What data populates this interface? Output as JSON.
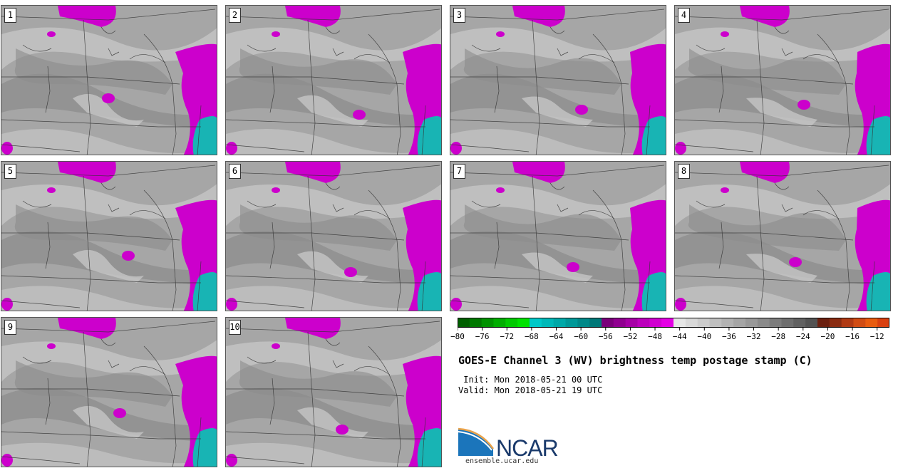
{
  "panels": [
    {
      "label": "1"
    },
    {
      "label": "2"
    },
    {
      "label": "3"
    },
    {
      "label": "4"
    },
    {
      "label": "5"
    },
    {
      "label": "6"
    },
    {
      "label": "7"
    },
    {
      "label": "8"
    },
    {
      "label": "9"
    },
    {
      "label": "10"
    }
  ],
  "colorbar": {
    "ticks": [
      "−80",
      "−76",
      "−72",
      "−68",
      "−64",
      "−60",
      "−56",
      "−52",
      "−48",
      "−44",
      "−40",
      "−36",
      "−32",
      "−28",
      "−24",
      "−20",
      "−16",
      "−12"
    ],
    "min": -80,
    "max": -10,
    "colors": [
      "#005f00",
      "#007800",
      "#009200",
      "#00ad00",
      "#00c900",
      "#00e100",
      "#00c8c8",
      "#00b8b8",
      "#00a8a8",
      "#009898",
      "#008888",
      "#007878",
      "#7a007a",
      "#900090",
      "#a600a6",
      "#bc00bc",
      "#d000d0",
      "#e400e4",
      "#e6e6e6",
      "#d9d9d9",
      "#cccccc",
      "#bfbfbf",
      "#b2b2b2",
      "#a5a5a5",
      "#989898",
      "#8a8a8a",
      "#7c7c7c",
      "#6e6e6e",
      "#606060",
      "#525252",
      "#6b2010",
      "#8a2c12",
      "#b03a14",
      "#d04c14",
      "#e85c10",
      "#d84010"
    ]
  },
  "map_colors": {
    "base": "#a6a6a6",
    "light": "#c6c6c6",
    "dark": "#8c8c8c",
    "moist": "#cc00cc",
    "cold": "#18b4b4",
    "border": "#333333"
  },
  "title": "GOES-E Channel 3 (WV) brightness temp postage stamp (C)",
  "init": " Init: Mon 2018-05-21 00 UTC",
  "valid": "Valid: Mon 2018-05-21 19 UTC",
  "logo": {
    "text": "NCAR",
    "url": "ensemble.ucar.edu"
  }
}
